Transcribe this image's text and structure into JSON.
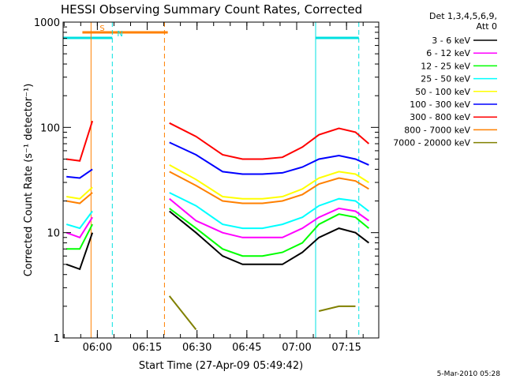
{
  "chart_data": {
    "type": "line",
    "title": "HESSI Observing Summary Count Rates, Corrected",
    "xlabel": "Start Time (27-Apr-09 05:49:42)",
    "ylabel": "Corrected Count Rate (s⁻¹ detector⁻¹)",
    "y_scale": "log",
    "ylim": [
      1,
      1000
    ],
    "y_ticks": [
      1,
      10,
      100,
      1000
    ],
    "y_tick_labels": [
      "1",
      "10",
      "100",
      "1000"
    ],
    "x_unit": "minutes after 05:49:42",
    "xlim": [
      0,
      95
    ],
    "x_ticks": [
      10.3,
      25.3,
      40.3,
      55.3,
      70.3,
      85.3
    ],
    "x_tick_labels": [
      "06:00",
      "06:15",
      "06:30",
      "06:45",
      "07:00",
      "07:15"
    ],
    "legend_header": [
      "Det 1,3,4,5,6,9,",
      "Att 0"
    ],
    "legend_position": "right",
    "footer": "5-Mar-2010 05:28",
    "flags": [
      {
        "label": "S",
        "color": "#ff8000",
        "x_start": 5.8,
        "x_end": 31.5
      },
      {
        "label": "N",
        "color": "#00e0e0",
        "x_start": 0,
        "x_end": 14.8
      },
      {
        "label": "",
        "color": "#00e0e0",
        "x_start": 76.0,
        "x_end": 89.0
      }
    ],
    "vlines": [
      {
        "x": 0,
        "color": "#00e0e0",
        "style": "solid"
      },
      {
        "x": 8.4,
        "color": "#ff8000",
        "style": "solid"
      },
      {
        "x": 14.8,
        "color": "#00e0e0",
        "style": "dashed"
      },
      {
        "x": 30.5,
        "color": "#ff8000",
        "style": "dashed"
      },
      {
        "x": 76.0,
        "color": "#00e0e0",
        "style": "solid"
      },
      {
        "x": 89.0,
        "color": "#00e0e0",
        "style": "dashed"
      }
    ],
    "data_gaps": [
      [
        9.0,
        31.5
      ]
    ],
    "x": [
      1,
      5,
      8.8,
      32,
      40,
      48,
      54,
      60,
      66,
      72,
      77,
      83,
      88,
      92
    ],
    "series": [
      {
        "name": "3 - 6 keV",
        "color": "#000000",
        "values": [
          5,
          4.5,
          10,
          16,
          10,
          6,
          5,
          5,
          5,
          6.5,
          9,
          11,
          10,
          8
        ]
      },
      {
        "name": "6 - 12 keV",
        "color": "#ff00ff",
        "values": [
          10,
          9,
          14,
          21,
          13,
          10,
          9,
          9,
          9,
          11,
          14,
          17,
          16,
          13
        ]
      },
      {
        "name": "12 - 25 keV",
        "color": "#00ff00",
        "values": [
          7,
          7,
          12,
          17,
          11,
          7,
          6,
          6,
          6.5,
          8,
          12,
          15,
          14,
          11
        ]
      },
      {
        "name": "25 - 50 keV",
        "color": "#00ffff",
        "values": [
          12,
          11,
          16,
          24,
          18,
          12,
          11,
          11,
          12,
          14,
          18,
          21,
          20,
          16
        ]
      },
      {
        "name": "50 - 100 keV",
        "color": "#ffff00",
        "values": [
          22,
          21,
          27,
          44,
          32,
          22,
          21,
          21,
          22,
          26,
          33,
          38,
          36,
          30
        ]
      },
      {
        "name": "100 - 300 keV",
        "color": "#0000ff",
        "values": [
          34,
          33,
          40,
          72,
          55,
          38,
          36,
          36,
          37,
          42,
          50,
          54,
          50,
          44
        ]
      },
      {
        "name": "300 - 800 keV",
        "color": "#ff0000",
        "values": [
          50,
          48,
          115,
          110,
          82,
          55,
          50,
          50,
          52,
          65,
          85,
          98,
          90,
          70
        ]
      },
      {
        "name": "800 - 7000 keV",
        "color": "#ff8000",
        "values": [
          20,
          19,
          24,
          38,
          28,
          20,
          19,
          19,
          20,
          23,
          29,
          33,
          31,
          26
        ]
      },
      {
        "name": "7000 - 20000 keV",
        "color": "#808000",
        "values": [
          null,
          null,
          null,
          2.5,
          1.2,
          null,
          null,
          null,
          null,
          null,
          1.8,
          2.0,
          2.0,
          null
        ]
      }
    ]
  }
}
